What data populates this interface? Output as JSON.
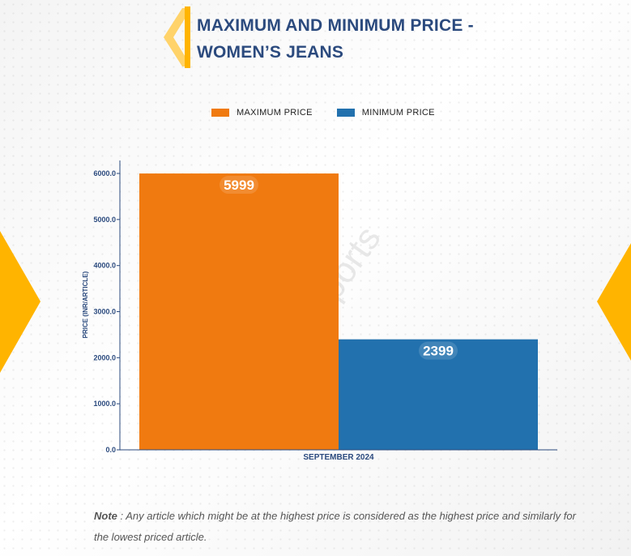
{
  "title": {
    "line1": "MAXIMUM AND MINIMUM PRICE -",
    "line2": "WOMEN’S JEANS"
  },
  "watermark": "D&J Reports",
  "colors": {
    "title": "#2b4a7e",
    "accent_yellow": "#ffb400",
    "max_series": "#f07a10",
    "min_series": "#2271ae"
  },
  "legend": [
    {
      "label": "MAXIMUM PRICE",
      "color": "#f07a10"
    },
    {
      "label": "MINIMUM PRICE",
      "color": "#2271ae"
    }
  ],
  "note": {
    "label": "Note",
    "text": " : Any article which might be at the highest price is considered as the highest price and similarly for the lowest priced article."
  },
  "chart_data": {
    "type": "bar",
    "categories": [
      "SEPTEMBER 2024"
    ],
    "series": [
      {
        "name": "MAXIMUM PRICE",
        "values": [
          5999
        ],
        "color": "#f07a10"
      },
      {
        "name": "MINIMUM PRICE",
        "values": [
          2399
        ],
        "color": "#2271ae"
      }
    ],
    "ylabel": "PRICE (INR/ARTICLE)",
    "xlabel": "",
    "ylim": [
      0,
      6300
    ],
    "yticks": [
      "0.0",
      "1000.0",
      "2000.0",
      "3000.0",
      "4000.0",
      "5000.0",
      "6000.0"
    ],
    "ytick_values": [
      0,
      1000,
      2000,
      3000,
      4000,
      5000,
      6000
    ],
    "data_labels": [
      "5999",
      "2399"
    ],
    "grid": false,
    "legend_position": "top-center"
  }
}
